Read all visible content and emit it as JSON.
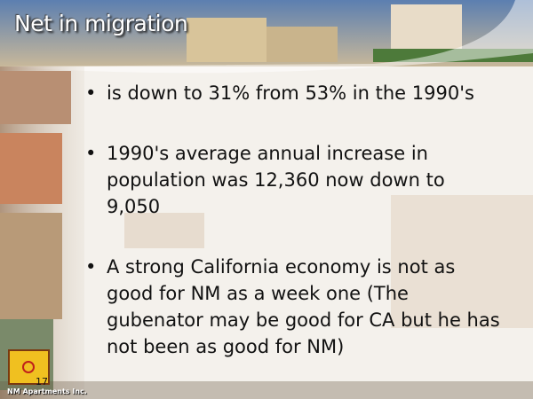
{
  "title": "Net in migration",
  "bullets": [
    "is down to 31% from 53% in the 1990's",
    "1990's average annual increase in population was 12,360 now down to 9,050",
    "A strong California economy is not as good for NM as a week one (The gubenator may be good for CA but he has not been as good for NM)"
  ],
  "slide_number": "17",
  "footer": "NM Apartments Inc."
}
